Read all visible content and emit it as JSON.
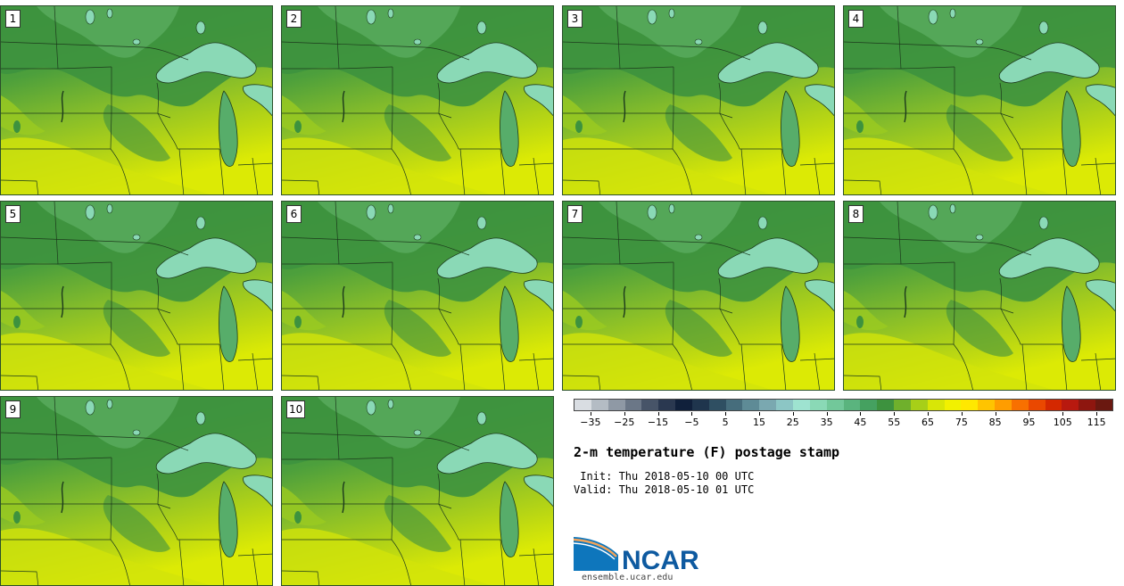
{
  "panels": [
    {
      "label": "1"
    },
    {
      "label": "2"
    },
    {
      "label": "3"
    },
    {
      "label": "4"
    },
    {
      "label": "5"
    },
    {
      "label": "6"
    },
    {
      "label": "7"
    },
    {
      "label": "8"
    },
    {
      "label": "9"
    },
    {
      "label": "10"
    }
  ],
  "colorbar": {
    "tick_labels": [
      "−35",
      "−25",
      "−15",
      "−5",
      "5",
      "15",
      "25",
      "35",
      "45",
      "55",
      "65",
      "75",
      "85",
      "95",
      "105",
      "115"
    ],
    "min": -40,
    "max": 120,
    "colors": [
      "#d9dde2",
      "#b4bcc4",
      "#8f99a5",
      "#6b7787",
      "#475468",
      "#2a3850",
      "#10203b",
      "#1f354d",
      "#2f4f62",
      "#466d7c",
      "#5e8b96",
      "#7aa8b0",
      "#8cc6c5",
      "#9ee3d0",
      "#8ad9b6",
      "#72c89a",
      "#5ab47e",
      "#45a160",
      "#3d923e",
      "#6fb02c",
      "#a7cf18",
      "#d8e607",
      "#f2f100",
      "#ffe800",
      "#ffc400",
      "#ff9d00",
      "#f87000",
      "#ea4800",
      "#d42800",
      "#b8190f",
      "#8e160f",
      "#6a1810"
    ]
  },
  "title": "2-m temperature (F) postage stamp",
  "init": " Init: Thu 2018-05-10 00 UTC",
  "valid": "Valid: Thu 2018-05-10 01 UTC",
  "logo": {
    "text": "NCAR",
    "url": "ensemble.ucar.edu"
  },
  "colors": {
    "cold_land": "#3d923e",
    "mid_land": "#5aa83a",
    "warm_land": "#a7cf18",
    "hot_land": "#d8e607",
    "lake": "#8ad9b6",
    "border": "#1c3a1c"
  }
}
